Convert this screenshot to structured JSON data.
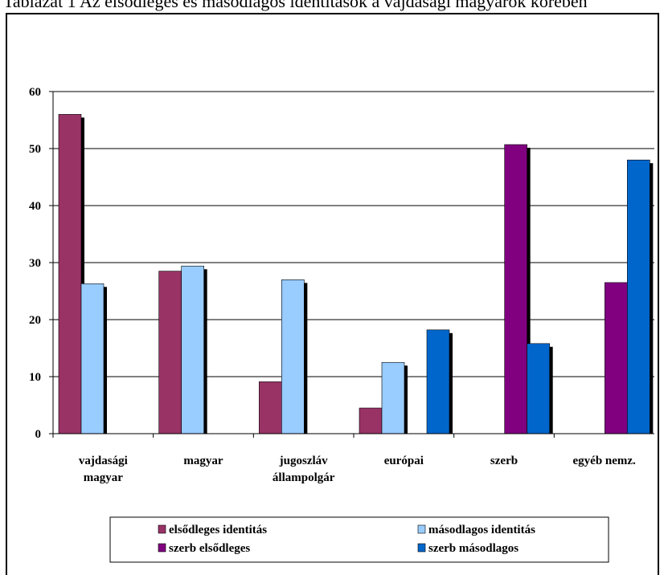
{
  "caption": "Tablázat 1 Az elsődleges és másodlagos identitások a vajdasági magyarok körében",
  "chart_data": {
    "type": "bar",
    "categories": [
      [
        "vajdasági",
        "magyar"
      ],
      [
        "magyar"
      ],
      [
        "jugoszláv",
        "állampolgár"
      ],
      [
        "európai"
      ],
      [
        "szerb"
      ],
      [
        "egyéb nemz."
      ]
    ],
    "series": [
      {
        "name": "elsődleges identitás",
        "color": "#993366",
        "values": [
          56,
          28.5,
          9.1,
          4.5,
          null,
          null
        ]
      },
      {
        "name": "másodlagos identitás",
        "color": "#99ccff",
        "values": [
          26.3,
          29.4,
          27,
          12.5,
          null,
          null
        ]
      },
      {
        "name": "szerb elsődleges",
        "color": "#800080",
        "values": [
          null,
          null,
          null,
          null,
          50.7,
          26.5
        ]
      },
      {
        "name": "szerb másodlagos",
        "color": "#0066cc",
        "values": [
          null,
          null,
          null,
          18.2,
          15.8,
          48
        ]
      }
    ],
    "ylim": [
      0,
      60
    ],
    "yticks": [
      0,
      10,
      20,
      30,
      40,
      50,
      60
    ],
    "grid": true,
    "legend_position": "bottom"
  }
}
